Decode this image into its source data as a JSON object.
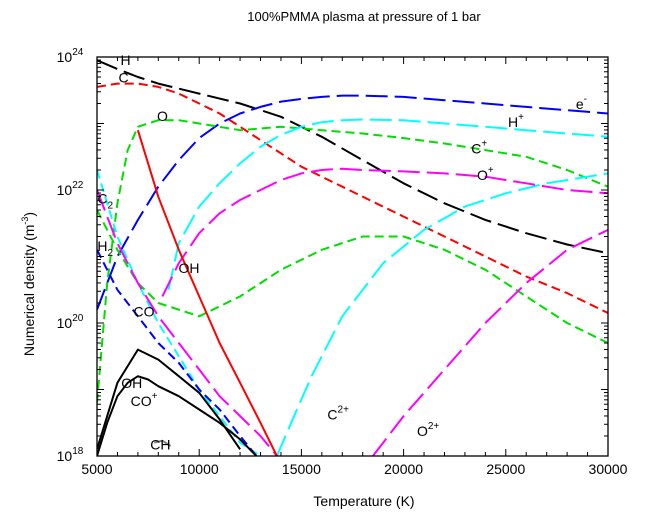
{
  "chart_data": {
    "type": "line",
    "title": "100%PMMA plasma at pressure of 1 bar",
    "xlabel": "Temperature (K)",
    "ylabel": {
      "text": "Numerical density (m",
      "sup": "-3",
      "close": ")"
    },
    "xlim": [
      5000,
      30000
    ],
    "ylim_log10": [
      18,
      24
    ],
    "y_scale": "log",
    "grid": false,
    "legend": "none",
    "x_ticks": [
      "5000",
      "10000",
      "15000",
      "20000",
      "25000",
      "30000"
    ],
    "y_ticks": [
      {
        "base": "10",
        "exp": "18"
      },
      {
        "base": "10",
        "exp": "20"
      },
      {
        "base": "10",
        "exp": "22"
      },
      {
        "base": "10",
        "exp": "24"
      }
    ],
    "series": [
      {
        "color": "#000000",
        "dash": "22 7",
        "x": [
          5000,
          6000,
          7000,
          8000,
          10000,
          12000,
          14000,
          16000,
          18000,
          20000,
          22000,
          24000,
          26000,
          28000,
          30000
        ],
        "y": [
          23.95,
          23.82,
          23.7,
          23.6,
          23.45,
          23.3,
          23.1,
          22.8,
          22.45,
          22.1,
          21.8,
          21.55,
          21.35,
          21.18,
          21.05
        ]
      },
      {
        "color": "#ff0000",
        "dash": "9 5",
        "x": [
          5000,
          6000,
          7000,
          8000,
          9000,
          10000,
          11000,
          12000,
          13000,
          14000,
          15000,
          16000,
          17000,
          18000,
          20000,
          22000,
          24000,
          26000,
          28000,
          30000
        ],
        "y": [
          23.55,
          23.6,
          23.6,
          23.55,
          23.45,
          23.3,
          23.15,
          22.95,
          22.75,
          22.55,
          22.35,
          22.2,
          22.05,
          21.9,
          21.6,
          21.3,
          21.0,
          20.7,
          20.45,
          20.15
        ]
      },
      {
        "color": "#0000ff",
        "dash": "22 7",
        "x": [
          5000,
          5500,
          6000,
          7000,
          8000,
          9000,
          10000,
          11000,
          12000,
          13000,
          14000,
          15000,
          16000,
          17000,
          18000,
          20000,
          22000,
          24000,
          26000,
          28000,
          30000
        ],
        "y": [
          20.2,
          20.6,
          21.0,
          21.55,
          22.05,
          22.45,
          22.78,
          23.0,
          23.15,
          23.25,
          23.33,
          23.37,
          23.4,
          23.42,
          23.42,
          23.4,
          23.35,
          23.3,
          23.25,
          23.2,
          23.15
        ]
      },
      {
        "color": "#00dd00",
        "dash": "9 5",
        "x": [
          5000,
          5500,
          6000,
          6500,
          7000,
          8000,
          9000,
          10000,
          12000,
          14000,
          16000,
          18000,
          20000,
          22000,
          24000,
          26000,
          28000,
          30000
        ],
        "y": [
          18.8,
          20.6,
          21.8,
          22.6,
          22.95,
          23.05,
          23.05,
          23.0,
          22.9,
          22.95,
          22.9,
          22.85,
          22.78,
          22.7,
          22.6,
          22.5,
          22.3,
          22.05
        ]
      },
      {
        "color": "#00dd00",
        "dash": "9 5",
        "x": [
          5000,
          5500,
          6000,
          7000,
          8000,
          10000,
          12000,
          14000,
          16000,
          18000,
          20000,
          22000,
          24000,
          26000,
          28000,
          30000
        ],
        "y": [
          21.7,
          21.4,
          21.1,
          20.6,
          20.3,
          20.1,
          20.4,
          20.8,
          21.1,
          21.3,
          21.3,
          21.1,
          20.8,
          20.4,
          20.0,
          19.7
        ]
      },
      {
        "color": "#00ffff",
        "dash": "9 5",
        "x": [
          5000,
          5500,
          6000,
          7000,
          8000,
          9000,
          10000,
          11000,
          12000,
          13000
        ],
        "y": [
          22.3,
          21.8,
          21.3,
          20.6,
          20.0,
          19.5,
          19.0,
          18.6,
          18.2,
          18.0
        ]
      },
      {
        "color": "#00ffff",
        "dash": "22 7",
        "x": [
          8500,
          9000,
          10000,
          11000,
          12000,
          13000,
          14000,
          15000,
          16000,
          17000,
          18000,
          20000,
          22000,
          24000,
          26000,
          28000,
          30000
        ],
        "y": [
          20.5,
          21.2,
          21.75,
          22.1,
          22.4,
          22.65,
          22.83,
          22.95,
          23.02,
          23.05,
          23.06,
          23.05,
          23.0,
          22.95,
          22.9,
          22.85,
          22.8
        ]
      },
      {
        "color": "#00ffff",
        "dash": "22 7",
        "x": [
          13800,
          14500,
          15500,
          17000,
          19000,
          21000,
          23000,
          25000,
          27000,
          29000,
          30000
        ],
        "y": [
          18.0,
          18.5,
          19.2,
          20.1,
          20.9,
          21.4,
          21.75,
          21.95,
          22.1,
          22.2,
          22.25
        ]
      },
      {
        "color": "#ff00ff",
        "dash": "22 7",
        "x": [
          5000,
          5500,
          6000,
          7000,
          8000,
          9000,
          10000,
          11000,
          12000,
          13000,
          13800
        ],
        "y": [
          22.0,
          21.6,
          21.2,
          20.6,
          20.1,
          19.7,
          19.3,
          18.9,
          18.6,
          18.3,
          18.0
        ]
      },
      {
        "color": "#ff00ff",
        "dash": "22 7",
        "x": [
          8200,
          9000,
          10000,
          11000,
          12000,
          13000,
          14000,
          15000,
          16000,
          17000,
          18000,
          20000,
          22000,
          24000,
          26000,
          28000,
          30000
        ],
        "y": [
          20.4,
          20.9,
          21.35,
          21.65,
          21.85,
          22.0,
          22.15,
          22.25,
          22.3,
          22.32,
          22.3,
          22.28,
          22.25,
          22.2,
          22.1,
          22.0,
          21.95
        ]
      },
      {
        "color": "#ff00ff",
        "dash": "22 7",
        "x": [
          18500,
          20000,
          22000,
          24000,
          26000,
          28000,
          30000
        ],
        "y": [
          18.0,
          18.6,
          19.3,
          20.0,
          20.6,
          21.1,
          21.4
        ]
      },
      {
        "color": "#ff0000",
        "dash": "",
        "x": [
          7000,
          7500,
          8000,
          9000,
          10000,
          11000,
          12000,
          13000,
          13800
        ],
        "y": [
          22.9,
          22.4,
          21.9,
          21.1,
          20.4,
          19.7,
          19.1,
          18.5,
          18.0
        ]
      },
      {
        "color": "#0000ff",
        "dash": "9 5",
        "x": [
          5000,
          6000,
          7000,
          8000,
          9000,
          10000,
          11000,
          12000,
          12800
        ],
        "y": [
          21.1,
          20.5,
          20.1,
          19.7,
          19.4,
          19.0,
          18.7,
          18.3,
          18.0
        ]
      },
      {
        "color": "#000000",
        "dash": "",
        "x": [
          5000,
          5500,
          6000,
          6500,
          7000,
          7500,
          8000,
          9000,
          10000,
          11000,
          12000,
          12800
        ],
        "y": [
          18.0,
          18.5,
          18.9,
          19.1,
          19.2,
          19.15,
          19.05,
          18.9,
          18.7,
          18.5,
          18.25,
          18.0
        ]
      },
      {
        "color": "#000000",
        "dash": "",
        "x": [
          5000,
          5500,
          6000,
          7000,
          8000,
          9000,
          10000,
          11000,
          12000
        ],
        "y": [
          18.1,
          18.6,
          19.1,
          19.6,
          19.45,
          19.2,
          18.95,
          18.55,
          18.1
        ]
      },
      {
        "color": "#808080",
        "dash": "",
        "x": [
          7800,
          8200,
          8600
        ],
        "y": [
          18.2,
          18.23,
          18.15
        ]
      }
    ],
    "labels": [
      {
        "text": "H",
        "x": 6400,
        "y": 23.88
      },
      {
        "text": "C",
        "x": 6300,
        "y": 23.62
      },
      {
        "text": "O",
        "x": 8200,
        "y": 23.04
      },
      {
        "text": "e",
        "sup": "-",
        "x": 28700,
        "y": 23.22
      },
      {
        "text": "H",
        "sup": "+",
        "x": 25500,
        "y": 22.95
      },
      {
        "text": "C",
        "sup": "+",
        "x": 23700,
        "y": 22.55
      },
      {
        "text": "O",
        "sup": "+",
        "x": 24000,
        "y": 22.15
      },
      {
        "text": "C",
        "sub": "2",
        "x": 5400,
        "y": 21.8
      },
      {
        "text": "H",
        "sub": "2",
        "x": 5400,
        "y": 21.08
      },
      {
        "text": "OH",
        "x": 9500,
        "y": 20.75
      },
      {
        "text": "CO",
        "x": 7300,
        "y": 20.1
      },
      {
        "text": "OH",
        "x": 6700,
        "y": 19.02
      },
      {
        "text": "CO",
        "sup": "+",
        "x": 7300,
        "y": 18.75
      },
      {
        "text": "CH",
        "x": 8100,
        "y": 18.1
      },
      {
        "text": "C",
        "sup": "2+",
        "x": 16800,
        "y": 18.55
      },
      {
        "text": "O",
        "sup": "2+",
        "x": 21200,
        "y": 18.3
      }
    ]
  }
}
